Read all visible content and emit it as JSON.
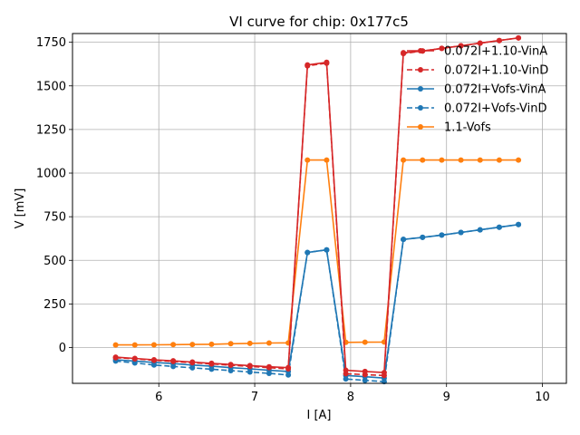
{
  "chart_data": {
    "type": "line",
    "title": "VI curve for chip: 0x177c5",
    "xlabel": "I [A]",
    "ylabel": "V [mV]",
    "xlim": [
      5.1,
      10.25
    ],
    "ylim": [
      -205,
      1800
    ],
    "xticks": [
      6,
      7,
      8,
      9,
      10
    ],
    "yticks": [
      0,
      250,
      500,
      750,
      1000,
      1250,
      1500,
      1750
    ],
    "grid": true,
    "legend_position": "top-right",
    "x": [
      5.55,
      5.75,
      5.95,
      6.15,
      6.35,
      6.55,
      6.75,
      6.95,
      7.15,
      7.35,
      7.55,
      7.75,
      7.95,
      8.15,
      8.35,
      8.55,
      8.75,
      8.95,
      9.15,
      9.35,
      9.55,
      9.75
    ],
    "series": [
      {
        "name": "0.072I+1.10-VinA",
        "color": "#d62728",
        "linestyle": "solid",
        "values": [
          -55,
          -62,
          -70,
          -76,
          -83,
          -90,
          -97,
          -103,
          -110,
          -115,
          1620,
          1635,
          -130,
          -137,
          -143,
          1690,
          1700,
          1715,
          1730,
          1745,
          1760,
          1775
        ]
      },
      {
        "name": "0.072I+1.10-VinD",
        "color": "#d62728",
        "linestyle": "dashed",
        "values": [
          -58,
          -65,
          -73,
          -80,
          -87,
          -94,
          -101,
          -108,
          -115,
          -122,
          1615,
          1630,
          -150,
          -155,
          -160,
          1685,
          1700,
          1715,
          1730,
          1745,
          1760,
          1775
        ]
      },
      {
        "name": "0.072I+Vofs-VinA",
        "color": "#1f77b4",
        "linestyle": "solid",
        "values": [
          -70,
          -77,
          -85,
          -92,
          -100,
          -107,
          -115,
          -122,
          -130,
          -137,
          545,
          560,
          -160,
          -167,
          -175,
          620,
          632,
          645,
          660,
          675,
          690,
          705
        ]
      },
      {
        "name": "0.072I+Vofs-VinD",
        "color": "#1f77b4",
        "linestyle": "dashed",
        "values": [
          -77,
          -88,
          -100,
          -108,
          -116,
          -124,
          -132,
          -140,
          -148,
          -157,
          545,
          560,
          -180,
          -188,
          -195,
          620,
          632,
          645,
          660,
          675,
          690,
          705
        ]
      },
      {
        "name": "1.1-Vofs",
        "color": "#ff7f0e",
        "linestyle": "solid",
        "values": [
          15,
          15,
          16,
          17,
          18,
          19,
          22,
          24,
          26,
          27,
          1075,
          1075,
          30,
          31,
          32,
          1075,
          1075,
          1075,
          1075,
          1075,
          1075,
          1075
        ]
      }
    ]
  }
}
